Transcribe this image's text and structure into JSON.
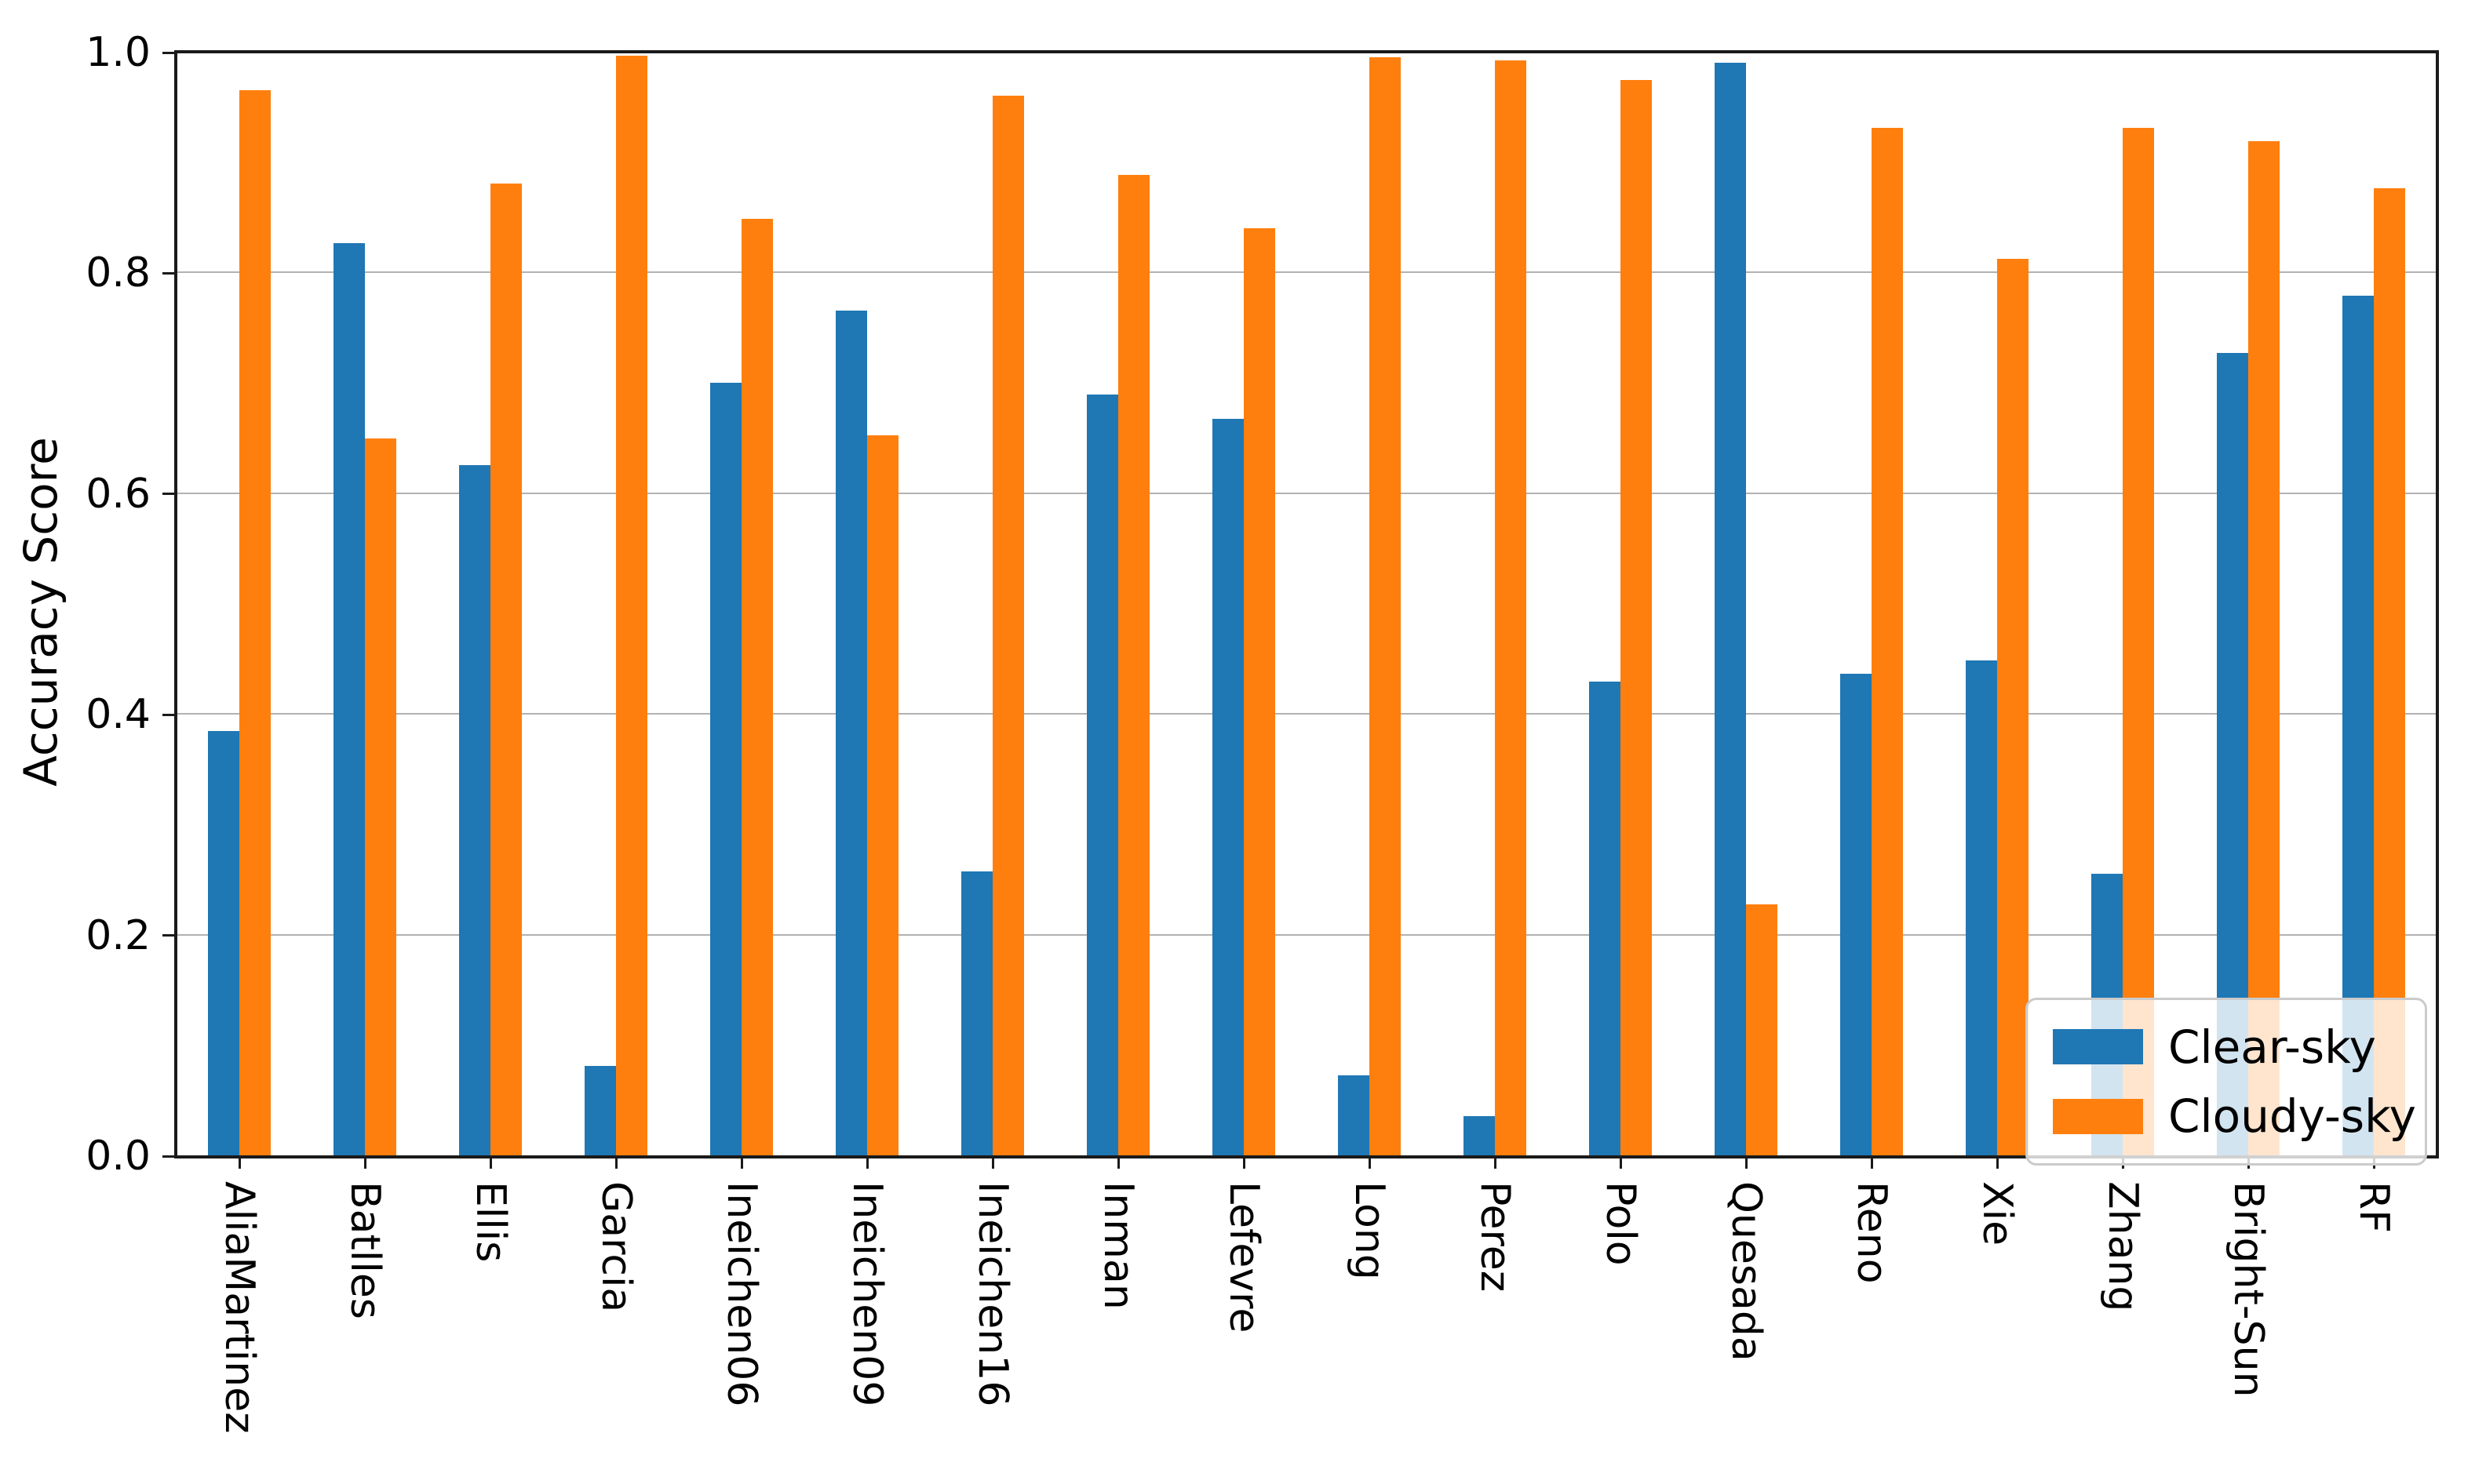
{
  "figure": {
    "background": "#ffffff",
    "text_color": "#000000",
    "grid_color": "#b2b2b2",
    "spine_color": "#1a1a1a"
  },
  "legend": {
    "items": [
      {
        "label": "Clear-sky",
        "color": "#1f77b4"
      },
      {
        "label": "Cloudy-sky",
        "color": "#ff7f0e"
      }
    ]
  },
  "chart_data": {
    "type": "bar",
    "title": "",
    "xlabel": "",
    "ylabel": "Accuracy Score",
    "ylim": [
      0.0,
      1.0
    ],
    "yticks": [
      0.0,
      0.2,
      0.4,
      0.6,
      0.8,
      1.0
    ],
    "ytick_labels": [
      "0.0",
      "0.2",
      "0.4",
      "0.6",
      "0.8",
      "1.0"
    ],
    "grid": true,
    "legend_position": "lower right",
    "bar_width_fraction": 0.25,
    "categories": [
      "AliaMartinez",
      "Batlles",
      "Ellis",
      "Garcia",
      "Ineichen06",
      "Ineichen09",
      "Ineichen16",
      "Inman",
      "Lefevre",
      "Long",
      "Perez",
      "Polo",
      "Quesada",
      "Reno",
      "Xie",
      "Zhang",
      "Bright-Sun",
      "RF"
    ],
    "series": [
      {
        "name": "Clear-sky",
        "color": "#1f77b4",
        "values": [
          0.385,
          0.827,
          0.626,
          0.082,
          0.701,
          0.766,
          0.258,
          0.69,
          0.668,
          0.073,
          0.036,
          0.43,
          0.991,
          0.437,
          0.449,
          0.256,
          0.728,
          0.78
        ]
      },
      {
        "name": "Cloudy-sky",
        "color": "#ff7f0e",
        "values": [
          0.966,
          0.65,
          0.881,
          0.997,
          0.849,
          0.653,
          0.961,
          0.889,
          0.841,
          0.996,
          0.993,
          0.975,
          0.228,
          0.932,
          0.813,
          0.932,
          0.92,
          0.877
        ]
      }
    ]
  }
}
